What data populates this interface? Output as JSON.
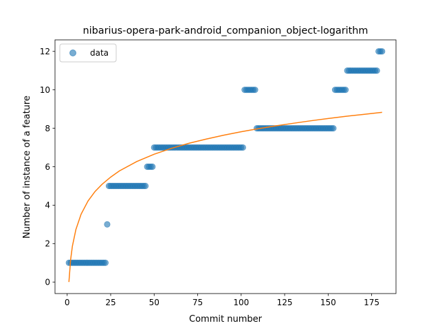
{
  "chart_data": {
    "type": "scatter",
    "title": "nibarius-opera-park-android_companion_object-logarithm",
    "xlabel": "Commit number",
    "ylabel": "Number of instance of a feature",
    "xlim": [
      -7.0,
      189.0
    ],
    "ylim": [
      -0.6,
      12.6
    ],
    "xticks": [
      0,
      25,
      50,
      75,
      100,
      125,
      150,
      175
    ],
    "yticks": [
      0,
      2,
      4,
      6,
      8,
      10,
      12
    ],
    "grid": false,
    "legend": {
      "placement": "upper-left",
      "entries": [
        "data"
      ]
    },
    "colors": {
      "data": "#1f77b4",
      "fit": "#ff7f0e"
    },
    "series": [
      {
        "name": "data",
        "kind": "scatter",
        "segments": [
          {
            "x_start": 1,
            "x_end": 22,
            "y": 1
          },
          {
            "x_start": 23,
            "x_end": 23,
            "y": 3
          },
          {
            "x_start": 24,
            "x_end": 45,
            "y": 5
          },
          {
            "x_start": 46,
            "x_end": 49,
            "y": 6
          },
          {
            "x_start": 50,
            "x_end": 101,
            "y": 7
          },
          {
            "x_start": 102,
            "x_end": 108,
            "y": 10
          },
          {
            "x_start": 109,
            "x_end": 153,
            "y": 8
          },
          {
            "x_start": 154,
            "x_end": 160,
            "y": 10
          },
          {
            "x_start": 161,
            "x_end": 178,
            "y": 11
          },
          {
            "x_start": 179,
            "x_end": 181,
            "y": 12
          }
        ]
      },
      {
        "kind": "line",
        "points": [
          [
            1,
            0.0
          ],
          [
            2,
            1.18
          ],
          [
            3,
            1.87
          ],
          [
            5,
            2.73
          ],
          [
            8,
            3.53
          ],
          [
            12,
            4.22
          ],
          [
            16,
            4.71
          ],
          [
            20,
            5.08
          ],
          [
            25,
            5.46
          ],
          [
            30,
            5.78
          ],
          [
            40,
            6.27
          ],
          [
            50,
            6.65
          ],
          [
            60,
            6.96
          ],
          [
            70,
            7.22
          ],
          [
            80,
            7.44
          ],
          [
            90,
            7.64
          ],
          [
            100,
            7.82
          ],
          [
            110,
            7.98
          ],
          [
            120,
            8.13
          ],
          [
            130,
            8.26
          ],
          [
            140,
            8.39
          ],
          [
            150,
            8.51
          ],
          [
            160,
            8.62
          ],
          [
            170,
            8.72
          ],
          [
            181,
            8.83
          ]
        ]
      }
    ]
  }
}
